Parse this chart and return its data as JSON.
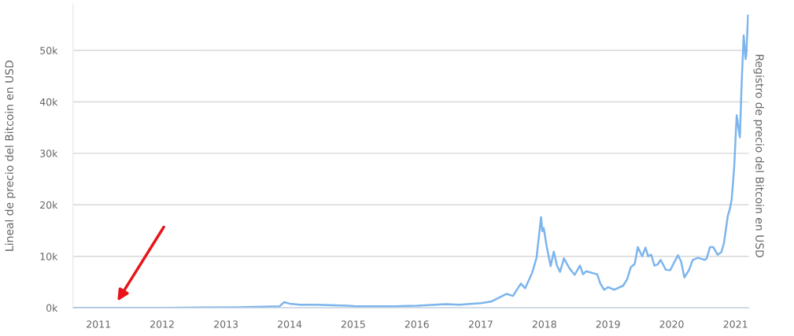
{
  "chart_data": {
    "type": "line",
    "ylabel": "Lineal de precio del Bitcoin en USD",
    "y2label": "Registro de precio del Bitcoin en USD",
    "x": [
      "2010-08-08",
      "2012-01-01",
      "2013-03-15",
      "2013-11-05",
      "2013-12-01",
      "2014-01-01",
      "2014-03-01",
      "2014-06-01",
      "2014-12-01",
      "2015-01-15",
      "2015-09-01",
      "2016-01-01",
      "2016-06-15",
      "2016-09-01",
      "2017-01-01",
      "2017-03-01",
      "2017-05-30",
      "2017-07-05",
      "2017-08-19",
      "2017-09-13",
      "2017-10-23",
      "2017-11-17",
      "2017-12-13",
      "2017-12-20",
      "2017-12-28",
      "2018-01-15",
      "2018-02-06",
      "2018-02-24",
      "2018-03-14",
      "2018-04-01",
      "2018-04-23",
      "2018-05-26",
      "2018-06-24",
      "2018-07-24",
      "2018-08-11",
      "2018-08-29",
      "2018-10-31",
      "2018-11-18",
      "2018-12-10",
      "2019-01-01",
      "2019-02-06",
      "2019-03-29",
      "2019-04-20",
      "2019-05-12",
      "2019-06-03",
      "2019-06-21",
      "2019-07-16",
      "2019-08-04",
      "2019-08-19",
      "2019-09-06",
      "2019-09-24",
      "2019-10-12",
      "2019-10-30",
      "2019-11-28",
      "2019-12-24",
      "2020-01-15",
      "2020-02-06",
      "2020-02-24",
      "2020-03-14",
      "2020-04-09",
      "2020-05-01",
      "2020-05-30",
      "2020-07-09",
      "2020-07-20",
      "2020-08-08",
      "2020-08-26",
      "2020-09-21",
      "2020-10-12",
      "2020-10-27",
      "2020-11-18",
      "2020-11-29",
      "2020-12-10",
      "2020-12-24",
      "2021-01-08",
      "2021-01-26",
      "2021-02-06",
      "2021-02-17",
      "2021-02-28",
      "2021-03-04",
      "2021-03-14"
    ],
    "series": [
      {
        "color": "#7cb5ec",
        "values": [
          0,
          0,
          100,
          300,
          1100,
          800,
          600,
          600,
          400,
          300,
          300,
          400,
          700,
          600,
          900,
          1200,
          2700,
          2300,
          4700,
          3800,
          6800,
          9700,
          17600,
          14900,
          15500,
          11800,
          8100,
          10900,
          8200,
          7000,
          9600,
          7600,
          6400,
          8200,
          6500,
          7100,
          6500,
          4700,
          3500,
          4000,
          3500,
          4300,
          5500,
          7900,
          8500,
          11800,
          10000,
          11700,
          10000,
          10300,
          8200,
          8400,
          9300,
          7400,
          7300,
          8800,
          10200,
          9000,
          5900,
          7300,
          9300,
          9700,
          9300,
          9600,
          11800,
          11800,
          10300,
          10800,
          12600,
          17900,
          19100,
          21000,
          27000,
          37400,
          33100,
          44200,
          52900,
          48300,
          49200,
          56800
        ]
      }
    ],
    "xlim": [
      "2010-08-08",
      "2021-03-18"
    ],
    "xticks": [
      "2011",
      "2012",
      "2013",
      "2014",
      "2015",
      "2016",
      "2017",
      "2018",
      "2019",
      "2020",
      "2021"
    ],
    "ylim": [
      0,
      59000
    ],
    "yticks": [
      {
        "value": 0,
        "label": "0k"
      },
      {
        "value": 10000,
        "label": "10k"
      },
      {
        "value": 20000,
        "label": "20k"
      },
      {
        "value": 30000,
        "label": "30k"
      },
      {
        "value": 40000,
        "label": "40k"
      },
      {
        "value": 50000,
        "label": "50k"
      }
    ],
    "grid": "y",
    "legend": false
  }
}
